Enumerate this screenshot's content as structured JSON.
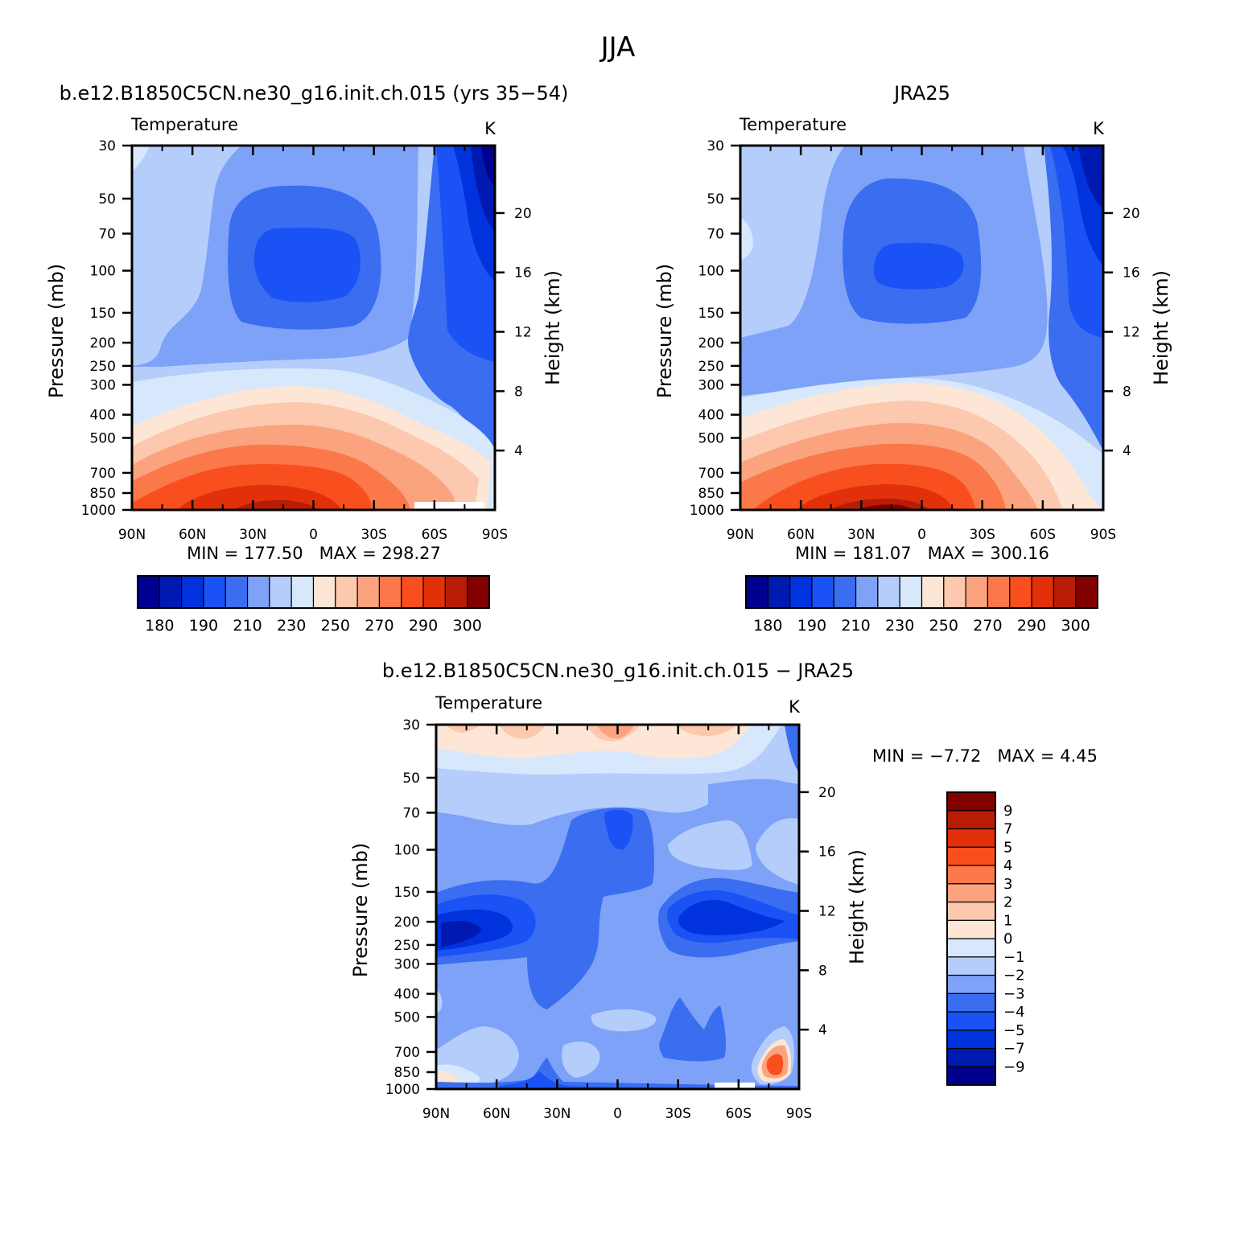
{
  "figure": {
    "title": "JJA"
  },
  "palettes": {
    "temperature": [
      "#000090",
      "#0019b0",
      "#0033dd",
      "#1a52f5",
      "#3a6df0",
      "#7ea2f8",
      "#b4cdfb",
      "#d8e8fc",
      "#fde6d6",
      "#fcc8ae",
      "#fba37f",
      "#fa7849",
      "#f94f1e",
      "#e1300a",
      "#b71c06",
      "#830000"
    ],
    "difference": [
      "#000090",
      "#0019b0",
      "#0033dd",
      "#1a52f5",
      "#3a6df0",
      "#7ea2f8",
      "#b4cdfb",
      "#d8e8fc",
      "#fde6d6",
      "#fcc8ae",
      "#fba37f",
      "#fa7849",
      "#f94f1e",
      "#e1300a",
      "#b71c06",
      "#830000"
    ]
  },
  "chart_data": [
    {
      "type": "heatmap",
      "title": "b.e12.B1850C5CN.ne30_g16.init.ch.015 (yrs 35−54)",
      "left_title": "Temperature",
      "units": "K",
      "xlabel": "",
      "ylabel": "Pressure (mb)",
      "ylabel_right": "Height (km)",
      "x_ticks": [
        "90N",
        "60N",
        "30N",
        "0",
        "30S",
        "60S",
        "90S"
      ],
      "y_ticks": [
        "30",
        "50",
        "70",
        "100",
        "150",
        "200",
        "250",
        "300",
        "400",
        "500",
        "700",
        "850",
        "1000"
      ],
      "y_ticks_right": [
        "20",
        "16",
        "12",
        "8",
        "4"
      ],
      "min_label": "MIN = 177.50",
      "max_label": "MAX = 298.27",
      "min": 177.5,
      "max": 298.27,
      "colorbar_labels": [
        "180",
        "190",
        "210",
        "230",
        "250",
        "270",
        "290",
        "300"
      ]
    },
    {
      "type": "heatmap",
      "title": "JRA25",
      "left_title": "Temperature",
      "units": "K",
      "xlabel": "",
      "ylabel": "Pressure (mb)",
      "ylabel_right": "Height (km)",
      "x_ticks": [
        "90N",
        "60N",
        "30N",
        "0",
        "30S",
        "60S",
        "90S"
      ],
      "y_ticks": [
        "30",
        "50",
        "70",
        "100",
        "150",
        "200",
        "250",
        "300",
        "400",
        "500",
        "700",
        "850",
        "1000"
      ],
      "y_ticks_right": [
        "20",
        "16",
        "12",
        "8",
        "4"
      ],
      "min_label": "MIN = 181.07",
      "max_label": "MAX = 300.16",
      "min": 181.07,
      "max": 300.16,
      "colorbar_labels": [
        "180",
        "190",
        "210",
        "230",
        "250",
        "270",
        "290",
        "300"
      ]
    },
    {
      "type": "heatmap",
      "title": "b.e12.B1850C5CN.ne30_g16.init.ch.015 − JRA25",
      "left_title": "Temperature",
      "units": "K",
      "xlabel": "",
      "ylabel": "Pressure (mb)",
      "ylabel_right": "Height (km)",
      "x_ticks": [
        "90N",
        "60N",
        "30N",
        "0",
        "30S",
        "60S",
        "90S"
      ],
      "y_ticks": [
        "30",
        "50",
        "70",
        "100",
        "150",
        "200",
        "250",
        "300",
        "400",
        "500",
        "700",
        "850",
        "1000"
      ],
      "y_ticks_right": [
        "20",
        "16",
        "12",
        "8",
        "4"
      ],
      "min_label": "MIN = −7.72",
      "max_label": "MAX = 4.45",
      "min": -7.72,
      "max": 4.45,
      "colorbar_labels": [
        "9",
        "7",
        "5",
        "4",
        "3",
        "2",
        "1",
        "0",
        "−1",
        "−2",
        "−3",
        "−4",
        "−5",
        "−7",
        "−9"
      ]
    }
  ]
}
